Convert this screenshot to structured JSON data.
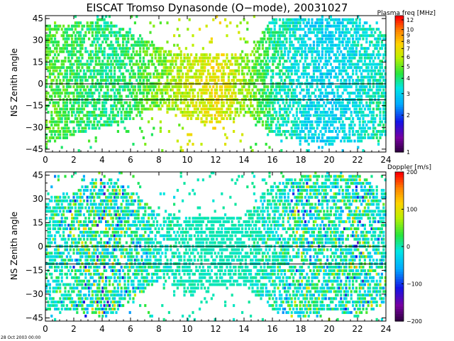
{
  "title": "EISCAT Tromso Dynasonde (O−mode),  20031027",
  "timestamp": "28 Oct 2003 00:00",
  "colors": {
    "axis": "#000000",
    "background": "#ffffff"
  },
  "chart_data": [
    {
      "type": "heatmap",
      "name": "plasma-frequency-panel",
      "ylabel": "NS Zenith angle",
      "xlim": [
        0,
        24
      ],
      "ylim": [
        -47,
        47
      ],
      "xticks": [
        "0",
        "2",
        "4",
        "6",
        "8",
        "10",
        "12",
        "14",
        "16",
        "18",
        "20",
        "22",
        "24"
      ],
      "yticks": [
        "−45",
        "−30",
        "−15",
        "0",
        "15",
        "30",
        "45"
      ],
      "reference_lines_y": [
        0,
        -11
      ],
      "colorbar": {
        "title": "Plasma freq [MHz]",
        "scale": "log",
        "range": [
          1,
          13
        ],
        "ticks": [
          "1",
          "2",
          "3",
          "4",
          "5",
          "6",
          "7",
          "8",
          "9",
          "10",
          "12"
        ]
      },
      "activity_profile": [
        {
          "hour": 0,
          "value_mhz": 4.8,
          "span": [
            -42,
            40
          ]
        },
        {
          "hour": 2,
          "value_mhz": 4.3,
          "span": [
            -35,
            42
          ]
        },
        {
          "hour": 4,
          "value_mhz": 4.0,
          "span": [
            -30,
            45
          ]
        },
        {
          "hour": 6,
          "value_mhz": 4.2,
          "span": [
            -25,
            35
          ]
        },
        {
          "hour": 8,
          "value_mhz": 5.2,
          "span": [
            -15,
            25
          ]
        },
        {
          "hour": 10,
          "value_mhz": 6.2,
          "span": [
            -25,
            20
          ]
        },
        {
          "hour": 12,
          "value_mhz": 7.0,
          "span": [
            -28,
            22
          ]
        },
        {
          "hour": 14,
          "value_mhz": 5.5,
          "span": [
            -20,
            20
          ]
        },
        {
          "hour": 16,
          "value_mhz": 3.8,
          "span": [
            -35,
            45
          ]
        },
        {
          "hour": 18,
          "value_mhz": 3.2,
          "span": [
            -40,
            45
          ]
        },
        {
          "hour": 20,
          "value_mhz": 3.0,
          "span": [
            -42,
            45
          ]
        },
        {
          "hour": 22,
          "value_mhz": 3.3,
          "span": [
            -40,
            45
          ]
        },
        {
          "hour": 24,
          "value_mhz": 3.6,
          "span": [
            -35,
            35
          ]
        }
      ]
    },
    {
      "type": "heatmap",
      "name": "doppler-panel",
      "ylabel": "NS Zenith angle",
      "xlim": [
        0,
        24
      ],
      "ylim": [
        -47,
        47
      ],
      "xticks": [
        "0",
        "2",
        "4",
        "6",
        "8",
        "10",
        "12",
        "14",
        "16",
        "18",
        "20",
        "22",
        "24"
      ],
      "yticks": [
        "−45",
        "−30",
        "−15",
        "0",
        "15",
        "30",
        "45"
      ],
      "reference_lines_y": [
        0,
        -11
      ],
      "colorbar": {
        "title": "Doppler [m/s]",
        "scale": "linear",
        "range": [
          -200,
          200
        ],
        "ticks": [
          "−200",
          "−100",
          "0",
          "100",
          "200"
        ]
      },
      "activity_profile": [
        {
          "hour": 0,
          "spread_ms": 60,
          "span": [
            -40,
            30
          ]
        },
        {
          "hour": 2,
          "spread_ms": 120,
          "span": [
            -40,
            35
          ]
        },
        {
          "hour": 4,
          "spread_ms": 150,
          "span": [
            -45,
            45
          ]
        },
        {
          "hour": 6,
          "spread_ms": 110,
          "span": [
            -35,
            35
          ]
        },
        {
          "hour": 8,
          "spread_ms": 40,
          "span": [
            -20,
            20
          ]
        },
        {
          "hour": 10,
          "spread_ms": 15,
          "span": [
            -30,
            20
          ]
        },
        {
          "hour": 12,
          "spread_ms": 10,
          "span": [
            -25,
            20
          ]
        },
        {
          "hour": 14,
          "spread_ms": 15,
          "span": [
            -25,
            20
          ]
        },
        {
          "hour": 16,
          "spread_ms": 60,
          "span": [
            -40,
            40
          ]
        },
        {
          "hour": 18,
          "spread_ms": 130,
          "span": [
            -45,
            45
          ]
        },
        {
          "hour": 20,
          "spread_ms": 80,
          "span": [
            -40,
            45
          ]
        },
        {
          "hour": 22,
          "spread_ms": 150,
          "span": [
            -45,
            45
          ]
        },
        {
          "hour": 24,
          "spread_ms": 70,
          "span": [
            -35,
            35
          ]
        }
      ]
    }
  ]
}
